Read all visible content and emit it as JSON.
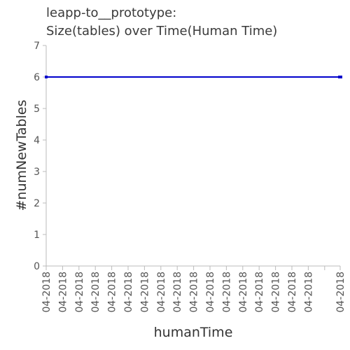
{
  "chart_data": {
    "type": "line",
    "title_lines": [
      "leapp-to__prototype:",
      "Size(tables) over Time(Human Time)"
    ],
    "xlabel": "humanTime",
    "ylabel": "#numNewTables",
    "x_tick_labels": [
      "04-2018",
      "04-2018",
      "04-2018",
      "04-2018",
      "04-2018",
      "04-2018",
      "04-2018",
      "04-2018",
      "04-2018",
      "04-2018",
      "04-2018",
      "04-2018",
      "04-2018",
      "04-2018",
      "04-2018",
      "04-2018",
      "04-2018",
      "04-2018"
    ],
    "y_ticks": [
      0,
      1,
      2,
      3,
      4,
      5,
      6,
      7
    ],
    "ylim": [
      0,
      7
    ],
    "grid": false,
    "series": [
      {
        "color": "#0000cc",
        "values": [
          6,
          6
        ]
      }
    ]
  }
}
